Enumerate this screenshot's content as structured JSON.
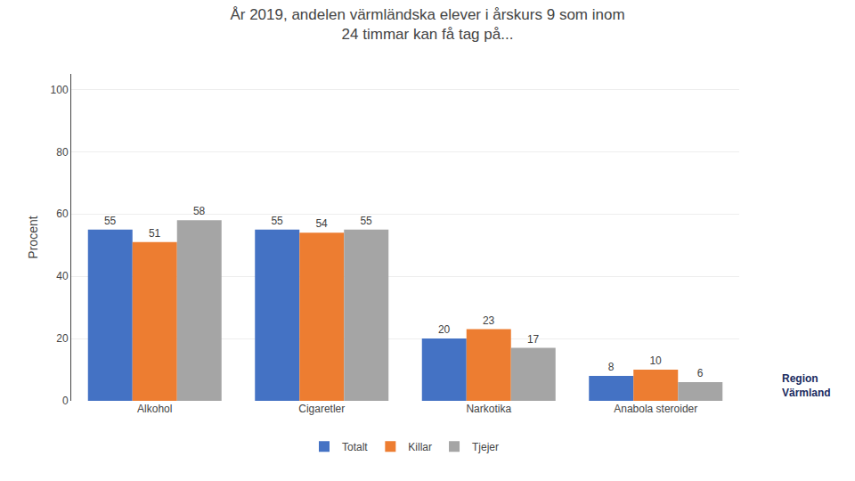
{
  "chart_data": {
    "type": "bar",
    "title": "År 2019, andelen värmländska elever i årskurs 9 som inom\n24 timmar kan få tag på...",
    "categories": [
      "Alkohol",
      "Cigaretler",
      "Narkotika",
      "Anabola steroider"
    ],
    "series": [
      {
        "name": "Totalt",
        "color": "#4472C4",
        "values": [
          55,
          55,
          20,
          8
        ]
      },
      {
        "name": "Killar",
        "color": "#ED7D31",
        "values": [
          51,
          54,
          23,
          10
        ]
      },
      {
        "name": "Tjejer",
        "color": "#A5A5A5",
        "values": [
          58,
          55,
          17,
          6
        ]
      }
    ],
    "ylabel": "Procent",
    "ylim": [
      0,
      105
    ],
    "yticks": [
      0,
      20,
      40,
      60,
      80,
      100
    ],
    "grid": true,
    "legend": "bottom",
    "data_labels": true,
    "annotations": [
      {
        "text": "Region\nVärmland",
        "color": "#1a2b5e"
      }
    ]
  }
}
